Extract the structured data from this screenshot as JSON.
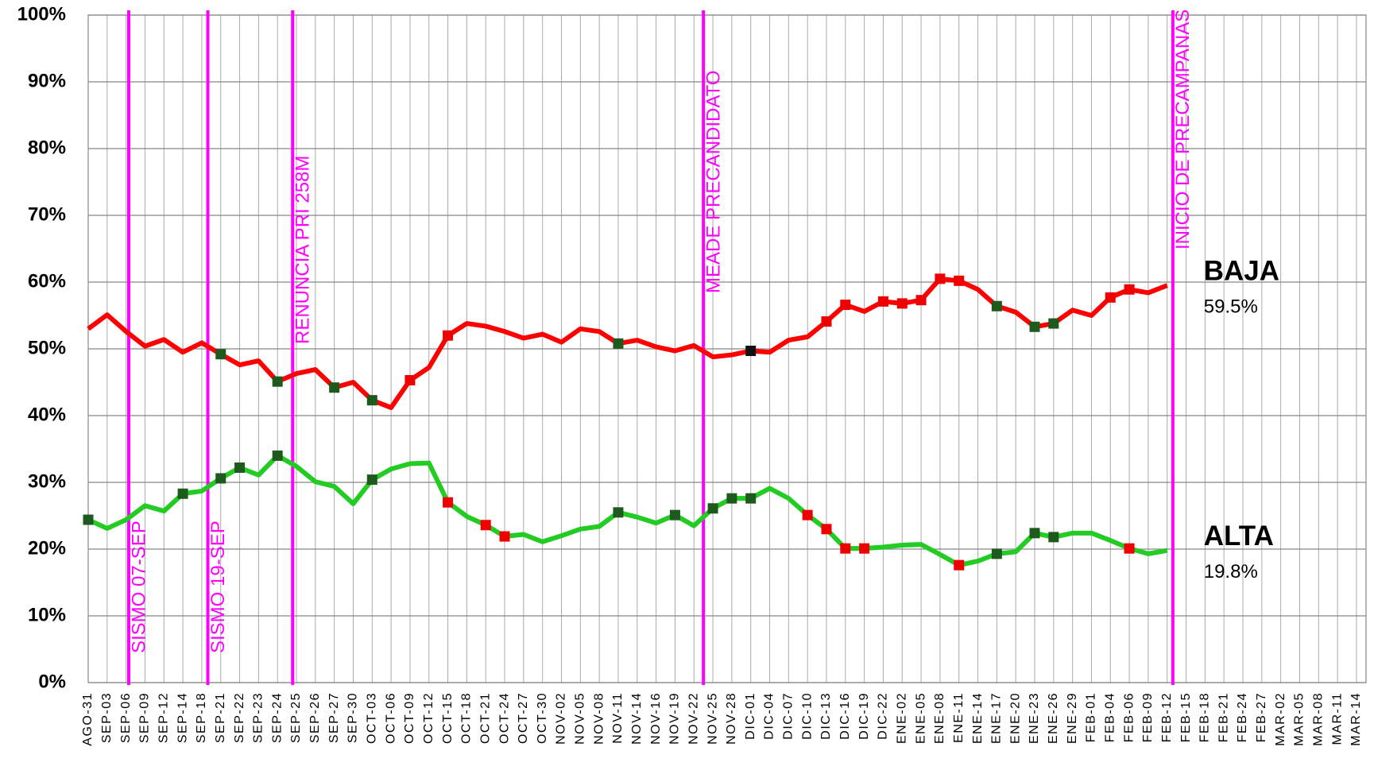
{
  "chart_data": {
    "type": "line",
    "categories": [
      "AGO-31",
      "SEP-03",
      "SEP-06",
      "SEP-09",
      "SEP-12",
      "SEP-14",
      "SEP-18",
      "SEP-21",
      "SEP-22",
      "SEP-23",
      "SEP-24",
      "SEP-25",
      "SEP-26",
      "SEP-27",
      "SEP-30",
      "OCT-03",
      "OCT-06",
      "OCT-09",
      "OCT-12",
      "OCT-15",
      "OCT-18",
      "OCT-21",
      "OCT-24",
      "OCT-27",
      "OCT-30",
      "NOV-02",
      "NOV-05",
      "NOV-08",
      "NOV-11",
      "NOV-14",
      "NOV-16",
      "NOV-19",
      "NOV-22",
      "NOV-25",
      "NOV-28",
      "DIC-01",
      "DIC-04",
      "DIC-07",
      "DIC-10",
      "DIC-13",
      "DIC-16",
      "DIC-19",
      "DIC-22",
      "ENE-02",
      "ENE-05",
      "ENE-08",
      "ENE-11",
      "ENE-14",
      "ENE-17",
      "ENE-20",
      "ENE-23",
      "ENE-26",
      "ENE-29",
      "FEB-01",
      "FEB-04",
      "FEB-06",
      "FEB-09",
      "FEB-12",
      "FEB-15",
      "FEB-18",
      "FEB-21",
      "FEB-24",
      "FEB-27",
      "MAR-02",
      "MAR-05",
      "MAR-08",
      "MAR-11",
      "MAR-14"
    ],
    "series": [
      {
        "name": "BAJA",
        "color": "#ff0000",
        "values": [
          53.0,
          55.1,
          52.6,
          50.4,
          51.4,
          49.5,
          50.9,
          49.2,
          47.6,
          48.2,
          45.1,
          46.3,
          46.9,
          44.2,
          45.0,
          42.3,
          41.2,
          45.3,
          47.2,
          52.0,
          53.8,
          53.4,
          52.6,
          51.6,
          52.2,
          51.0,
          53.0,
          52.6,
          50.8,
          51.3,
          50.3,
          49.7,
          50.5,
          48.8,
          49.1,
          49.7,
          49.5,
          51.3,
          51.8,
          54.1,
          56.6,
          55.6,
          57.1,
          56.8,
          57.3,
          60.5,
          60.2,
          58.9,
          56.4,
          55.5,
          53.3,
          53.8,
          55.8,
          55.0,
          57.7,
          58.9,
          58.4,
          59.5,
          null,
          null,
          null,
          null,
          null,
          null,
          null,
          null,
          null,
          null
        ],
        "value_labels": [
          null,
          null,
          null,
          null,
          null,
          null,
          null,
          null,
          null,
          null,
          null,
          null,
          null,
          null,
          null,
          null,
          null,
          null,
          null,
          null,
          null,
          null,
          null,
          null,
          null,
          null,
          null,
          null,
          null,
          null,
          null,
          null,
          null,
          null,
          null,
          null,
          null,
          null,
          null,
          null,
          null,
          null,
          null,
          null,
          null,
          null,
          null,
          null,
          null,
          null,
          null,
          null,
          null,
          null,
          null,
          null,
          null,
          "59.5%",
          null,
          null,
          null,
          null,
          null,
          null,
          null,
          null,
          null,
          null
        ],
        "markers": [
          {
            "index": 7,
            "color": "#1e5a1e"
          },
          {
            "index": 10,
            "color": "#1e5a1e"
          },
          {
            "index": 13,
            "color": "#1e5a1e"
          },
          {
            "index": 15,
            "color": "#1e5a1e"
          },
          {
            "index": 17,
            "color": "#ee0000"
          },
          {
            "index": 19,
            "color": "#ee0000"
          },
          {
            "index": 28,
            "color": "#1e5a1e"
          },
          {
            "index": 35,
            "color": "#111111"
          },
          {
            "index": 39,
            "color": "#ee0000"
          },
          {
            "index": 40,
            "color": "#ee0000"
          },
          {
            "index": 42,
            "color": "#ee0000"
          },
          {
            "index": 43,
            "color": "#ee0000"
          },
          {
            "index": 44,
            "color": "#ee0000"
          },
          {
            "index": 45,
            "color": "#ee0000"
          },
          {
            "index": 46,
            "color": "#ee0000"
          },
          {
            "index": 48,
            "color": "#1e5a1e"
          },
          {
            "index": 50,
            "color": "#1e5a1e"
          },
          {
            "index": 51,
            "color": "#1e5a1e"
          },
          {
            "index": 54,
            "color": "#ee0000"
          },
          {
            "index": 55,
            "color": "#ee0000"
          }
        ]
      },
      {
        "name": "ALTA",
        "color": "#22cc22",
        "values": [
          24.4,
          23.1,
          24.4,
          26.5,
          25.7,
          28.3,
          28.7,
          30.6,
          32.2,
          31.1,
          34.0,
          32.4,
          30.1,
          29.4,
          26.8,
          30.4,
          32.0,
          32.8,
          32.9,
          27.0,
          24.9,
          23.6,
          21.9,
          22.2,
          21.1,
          22.0,
          23.0,
          23.4,
          25.5,
          24.8,
          23.9,
          25.1,
          23.5,
          26.1,
          27.6,
          27.6,
          29.1,
          27.6,
          25.1,
          23.0,
          20.1,
          20.1,
          20.3,
          20.6,
          20.7,
          19.2,
          17.6,
          18.2,
          19.3,
          19.6,
          22.4,
          21.8,
          22.4,
          22.4,
          21.3,
          20.1,
          19.3,
          19.8,
          null,
          null,
          null,
          null,
          null,
          null,
          null,
          null,
          null,
          null
        ],
        "value_labels": [
          null,
          null,
          null,
          null,
          null,
          null,
          null,
          null,
          null,
          null,
          null,
          null,
          null,
          null,
          null,
          null,
          null,
          null,
          null,
          null,
          null,
          null,
          null,
          null,
          null,
          null,
          null,
          null,
          null,
          null,
          null,
          null,
          null,
          null,
          null,
          null,
          null,
          null,
          null,
          null,
          null,
          null,
          null,
          null,
          null,
          null,
          null,
          null,
          null,
          null,
          null,
          null,
          null,
          null,
          null,
          null,
          null,
          "19.8%",
          null,
          null,
          null,
          null,
          null,
          null,
          null,
          null,
          null,
          null
        ],
        "markers": [
          {
            "index": 0,
            "color": "#1e5a1e"
          },
          {
            "index": 5,
            "color": "#1e5a1e"
          },
          {
            "index": 7,
            "color": "#1e5a1e"
          },
          {
            "index": 8,
            "color": "#1e5a1e"
          },
          {
            "index": 10,
            "color": "#1e5a1e"
          },
          {
            "index": 15,
            "color": "#1e5a1e"
          },
          {
            "index": 19,
            "color": "#ee0000"
          },
          {
            "index": 21,
            "color": "#ee0000"
          },
          {
            "index": 22,
            "color": "#ee0000"
          },
          {
            "index": 28,
            "color": "#1e5a1e"
          },
          {
            "index": 31,
            "color": "#1e5a1e"
          },
          {
            "index": 33,
            "color": "#1e5a1e"
          },
          {
            "index": 34,
            "color": "#1e5a1e"
          },
          {
            "index": 35,
            "color": "#1e5a1e"
          },
          {
            "index": 38,
            "color": "#ee0000"
          },
          {
            "index": 39,
            "color": "#ee0000"
          },
          {
            "index": 40,
            "color": "#ee0000"
          },
          {
            "index": 41,
            "color": "#ee0000"
          },
          {
            "index": 46,
            "color": "#ee0000"
          },
          {
            "index": 48,
            "color": "#1e5a1e"
          },
          {
            "index": 50,
            "color": "#1e5a1e"
          },
          {
            "index": 51,
            "color": "#1e5a1e"
          },
          {
            "index": 55,
            "color": "#ee0000"
          }
        ]
      }
    ],
    "annotations": [
      {
        "text": "SISMO 07-SEP",
        "x": "SEP-06"
      },
      {
        "text": "SISMO 19-SEP",
        "x": "SEP-18"
      },
      {
        "text": "RENUNCIA PRI 258M",
        "x": "SEP-25"
      },
      {
        "text": "MEADE PRECANDIDATO",
        "x": "NOV-22"
      },
      {
        "text": "INICIO DE PRECAMPAÑAS",
        "x": "FEB-12"
      }
    ],
    "annotation_color": "#ff00ff",
    "ylim": [
      0,
      100
    ],
    "yticks": [
      {
        "value": 0,
        "label": "0%"
      },
      {
        "value": 10,
        "label": "10%"
      },
      {
        "value": 20,
        "label": "20%"
      },
      {
        "value": 30,
        "label": "30%"
      },
      {
        "value": 40,
        "label": "40%"
      },
      {
        "value": 50,
        "label": "50%"
      },
      {
        "value": 60,
        "label": "60%"
      },
      {
        "value": 70,
        "label": "70%"
      },
      {
        "value": 80,
        "label": "80%"
      },
      {
        "value": 90,
        "label": "90%"
      },
      {
        "value": 100,
        "label": "100%"
      }
    ],
    "grid": true
  }
}
